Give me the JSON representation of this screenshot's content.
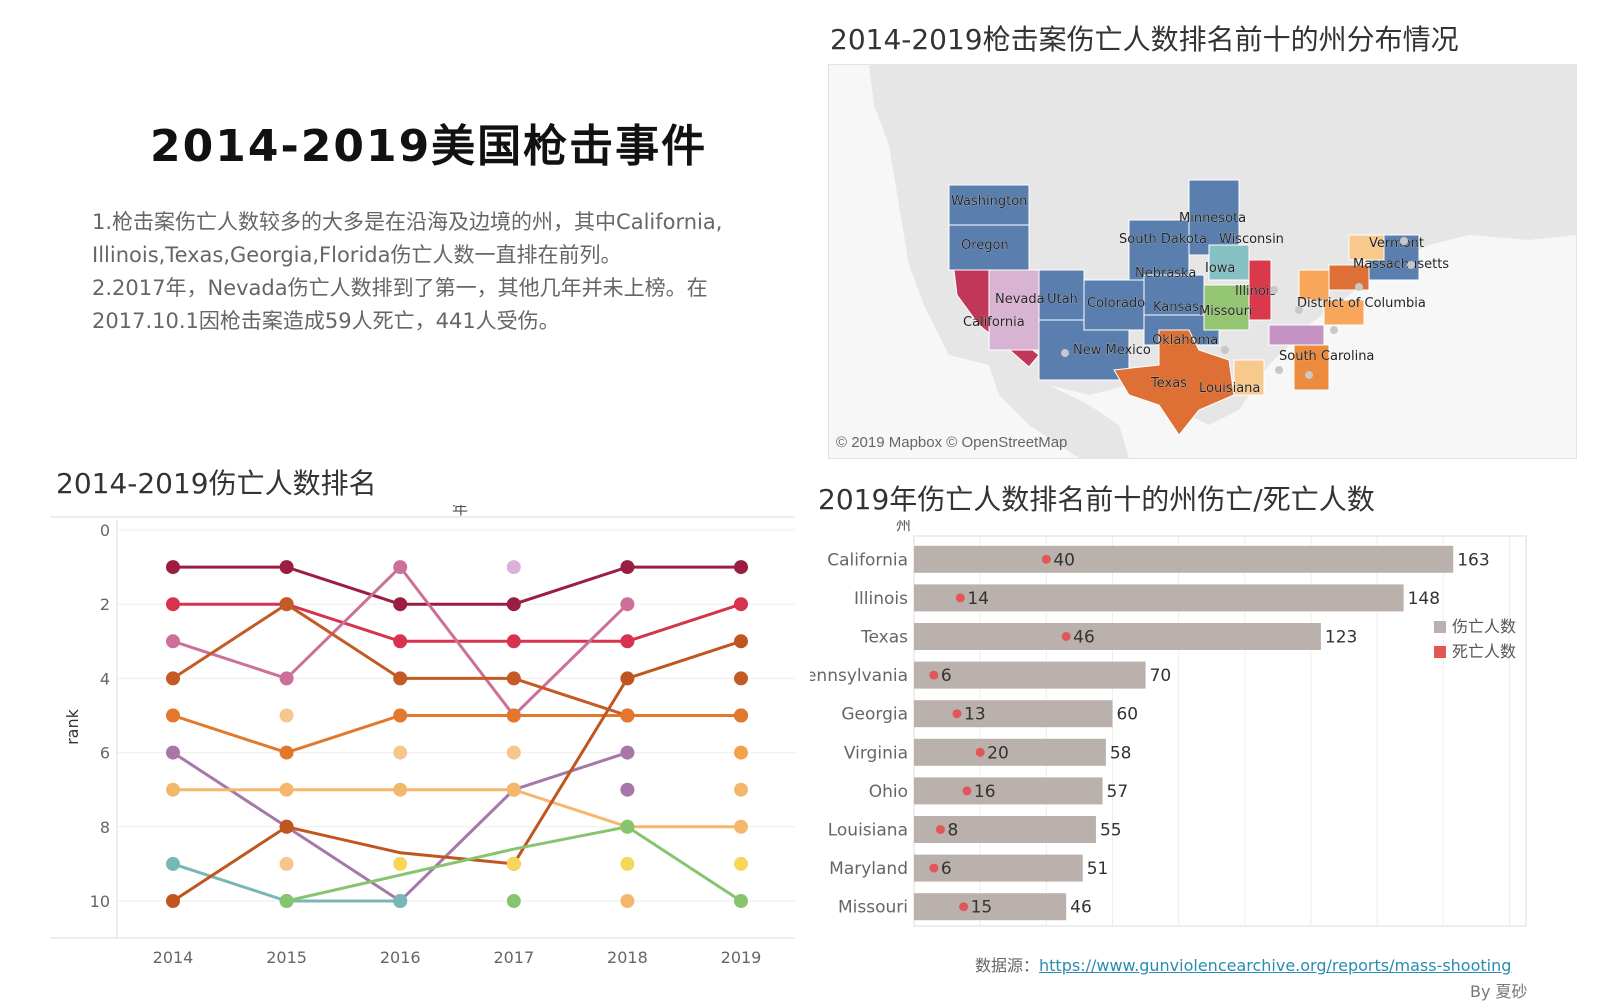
{
  "title": "2014-2019美国枪击事件",
  "description": [
    "1.枪击案伤亡人数较多的大多是在沿海及边境的州，其中California, Illinois,Texas,Georgia,Florida伤亡人数一直排在前列。",
    "2.2017年，Nevada伤亡人数排到了第一，其他几年并未上榜。在2017.10.1因枪击案造成59人死亡，441人受伤。"
  ],
  "map": {
    "title": "2014-2019枪击案伤亡人数排名前十的州分布情况",
    "attribution": "© 2019 Mapbox © OpenStreetMap",
    "labels": [
      "Washington",
      "Oregon",
      "California",
      "Nevada",
      "Utah",
      "Colorado",
      "New Mexico",
      "Texas",
      "Oklahoma",
      "Kansas",
      "Nebraska",
      "South Dakota",
      "Minnesota",
      "Wisconsin",
      "Iowa",
      "Missouri",
      "Illinois",
      "Louisiana",
      "South Carolina",
      "District of Columbia",
      "Vermont",
      "Massachusetts"
    ],
    "colors": {
      "land": "#e6e6e6",
      "water": "#f7f7f7",
      "base": "#5a7fae",
      "california": "#c0375a",
      "illinois": "#d9394b",
      "texas": "#de7035",
      "nevada": "#d9b3d4",
      "missouri": "#93c572",
      "georgia": "#ec8a3d",
      "ohio": "#f7a65a",
      "louisiana": "#f7c98c",
      "tennessee": "#c493c3",
      "iowa": "#86c1c3"
    }
  },
  "source": {
    "label": "数据源：",
    "url": "https://www.gunviolencearchive.org/reports/mass-shooting"
  },
  "byline": "By 夏砂",
  "chart_data": [
    {
      "type": "line",
      "title": "2014-2019伤亡人数排名",
      "xlabel": "年",
      "ylabel": "rank",
      "x": [
        "2014",
        "2015",
        "2016",
        "2017",
        "2018",
        "2019"
      ],
      "ylim": [
        0,
        11
      ],
      "yticks": [
        0,
        2,
        4,
        6,
        8,
        10
      ],
      "y_reversed": true,
      "grid": true,
      "series": [
        {
          "color": "#9b1d42",
          "values": [
            1,
            1,
            2,
            2,
            1,
            1
          ]
        },
        {
          "color": "#d8334e",
          "values": [
            2,
            2,
            3,
            3,
            3,
            2
          ]
        },
        {
          "color": "#cc7099",
          "values": [
            3,
            4,
            1,
            5,
            2,
            null
          ]
        },
        {
          "color": "#c45a26",
          "values": [
            4,
            2,
            4,
            4,
            5,
            5
          ]
        },
        {
          "color": "#e3772c",
          "values": [
            5,
            6,
            5,
            5,
            5,
            5
          ]
        },
        {
          "color": "#a677a8",
          "values": [
            6,
            8,
            10,
            7,
            6,
            null
          ]
        },
        {
          "color": "#f4b86d",
          "values": [
            7,
            7,
            7,
            7,
            8,
            8
          ]
        },
        {
          "color": "#78b7b8",
          "values": [
            9,
            10,
            10,
            null,
            null,
            null
          ]
        },
        {
          "color": "#c0561f",
          "values": [
            10,
            8,
            8.7,
            9,
            4,
            3
          ]
        },
        {
          "color": "#86c56e",
          "values": [
            null,
            10,
            9.3,
            8.6,
            8,
            10
          ]
        }
      ],
      "extra_points": [
        {
          "x": "2017",
          "y": 1,
          "color": "#dcb0d8"
        },
        {
          "x": "2019",
          "y": 6,
          "color": "#f2a24a"
        },
        {
          "x": "2016",
          "y": 6,
          "color": "#f6c78c"
        },
        {
          "x": "2017",
          "y": 10,
          "color": "#86c56e"
        },
        {
          "x": "2016",
          "y": 9,
          "color": "#f7d75a"
        },
        {
          "x": "2017",
          "y": 9,
          "color": "#f7d75a"
        },
        {
          "x": "2018",
          "y": 9,
          "color": "#f7d75a"
        },
        {
          "x": "2019",
          "y": 9,
          "color": "#f7d75a"
        },
        {
          "x": "2015",
          "y": 5,
          "color": "#f6c78c"
        },
        {
          "x": "2015",
          "y": 9,
          "color": "#f6c78c"
        },
        {
          "x": "2017",
          "y": 6,
          "color": "#f6c78c"
        },
        {
          "x": "2018",
          "y": 10,
          "color": "#f4b86d"
        },
        {
          "x": "2019",
          "y": 7,
          "color": "#f4b86d"
        },
        {
          "x": "2018",
          "y": 7,
          "color": "#a677a8"
        },
        {
          "x": "2019",
          "y": 4,
          "color": "#c45a26"
        }
      ]
    },
    {
      "type": "bar",
      "title": "2019年伤亡人数排名前十的州伤亡/死亡人数",
      "ylabel": "州",
      "categories": [
        "California",
        "Illinois",
        "Texas",
        "Pennsylvania",
        "Georgia",
        "Virginia",
        "Ohio",
        "Louisiana",
        "Maryland",
        "Missouri"
      ],
      "series": [
        {
          "name": "伤亡人数",
          "color": "#bab0ac",
          "values": [
            163,
            148,
            123,
            70,
            60,
            58,
            57,
            55,
            51,
            46
          ]
        },
        {
          "name": "死亡人数",
          "color": "#e15759",
          "values": [
            40,
            14,
            46,
            6,
            13,
            20,
            16,
            8,
            6,
            15
          ]
        }
      ],
      "xlim": [
        0,
        185
      ],
      "legend": "right"
    }
  ]
}
